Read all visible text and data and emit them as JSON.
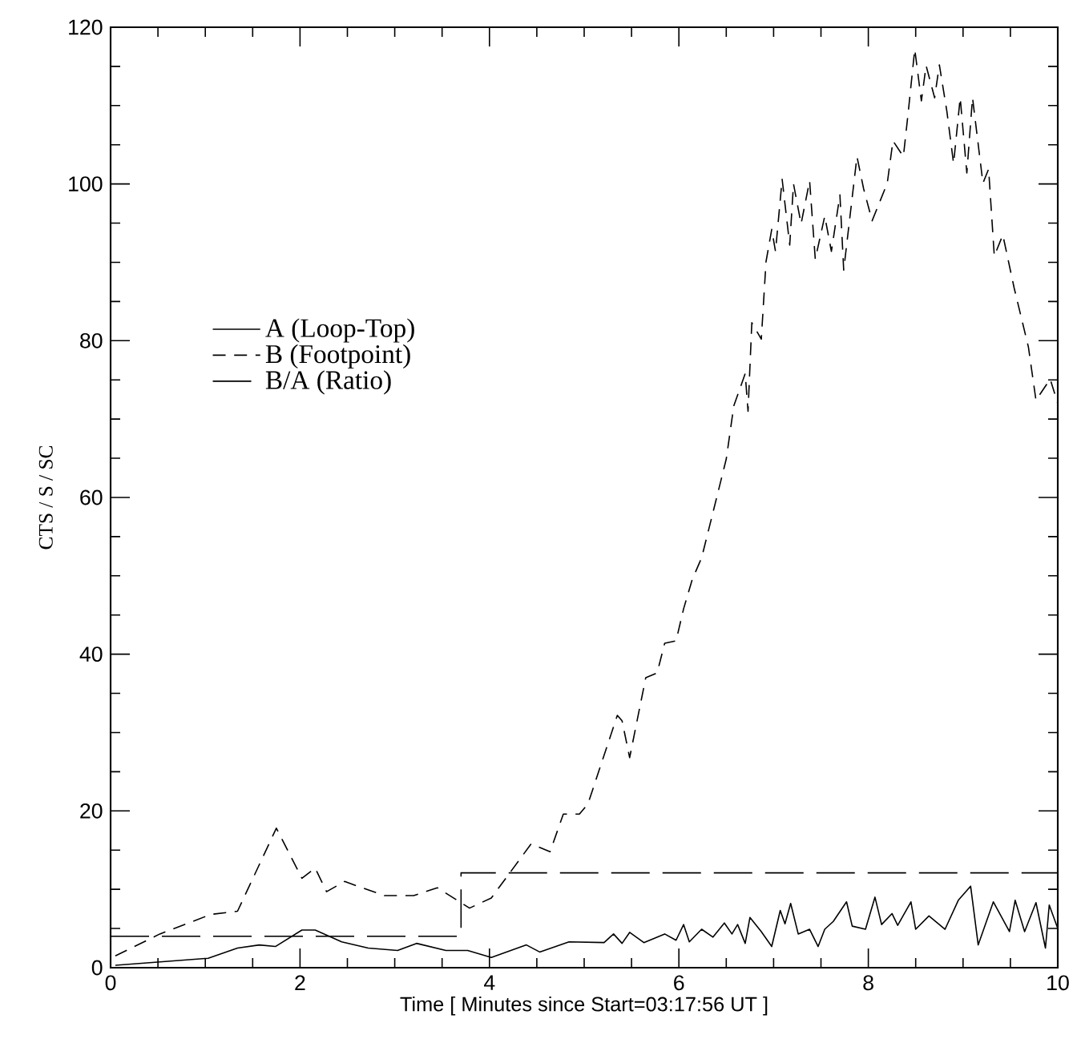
{
  "chart_data": {
    "type": "line",
    "xlabel": "Time [ Minutes since Start=03:17:56 UT ]",
    "ylabel": "CTS / S / SC",
    "xlim": [
      0,
      10
    ],
    "ylim": [
      0,
      120
    ],
    "xticks": [
      0,
      2,
      4,
      6,
      8,
      10
    ],
    "yticks": [
      0,
      20,
      40,
      60,
      80,
      100,
      120
    ],
    "legend": "center left",
    "grid": false,
    "series": [
      {
        "name": "A (Loop-Top)",
        "color": "#000000",
        "line_style": "solid",
        "x": [
          0.05,
          1.03,
          1.34,
          1.57,
          1.74,
          2.02,
          2.16,
          2.44,
          2.72,
          3.03,
          3.23,
          3.54,
          3.77,
          4.02,
          4.39,
          4.53,
          4.84,
          5.21,
          5.31,
          5.4,
          5.48,
          5.63,
          5.85,
          5.97,
          6.05,
          6.11,
          6.24,
          6.36,
          6.48,
          6.56,
          6.62,
          6.7,
          6.75,
          6.87,
          6.98,
          7.07,
          7.12,
          7.18,
          7.26,
          7.38,
          7.47,
          7.54,
          7.63,
          7.77,
          7.83,
          7.97,
          8.07,
          8.14,
          8.25,
          8.31,
          8.45,
          8.5,
          8.64,
          8.81,
          8.95,
          9.08,
          9.16,
          9.32,
          9.49,
          9.55,
          9.65,
          9.77,
          9.87,
          9.91,
          10.0
        ],
        "values": [
          0.3,
          1.2,
          2.5,
          2.9,
          2.7,
          4.8,
          4.8,
          3.3,
          2.5,
          2.2,
          3.1,
          2.2,
          2.2,
          1.3,
          2.9,
          2.0,
          3.3,
          3.2,
          4.3,
          3.1,
          4.5,
          3.2,
          4.3,
          3.5,
          5.5,
          3.3,
          4.9,
          3.9,
          5.7,
          4.3,
          5.5,
          3.1,
          6.4,
          4.6,
          2.7,
          7.3,
          5.6,
          8.2,
          4.3,
          4.9,
          2.7,
          4.9,
          5.9,
          8.4,
          5.3,
          4.9,
          9.0,
          5.5,
          6.9,
          5.4,
          8.4,
          4.9,
          6.6,
          4.9,
          8.6,
          10.4,
          2.9,
          8.4,
          4.6,
          8.6,
          4.6,
          8.3,
          2.5,
          8.0,
          5.0
        ]
      },
      {
        "name": "B (Footpoint)",
        "color": "#000000",
        "line_style": "dashed",
        "x": [
          0.05,
          0.52,
          1.06,
          1.34,
          1.75,
          2.02,
          2.16,
          2.28,
          2.47,
          2.89,
          3.2,
          3.45,
          3.79,
          4.02,
          4.44,
          4.64,
          4.78,
          4.95,
          5.04,
          5.35,
          5.4,
          5.48,
          5.65,
          5.77,
          5.85,
          5.97,
          6.05,
          6.14,
          6.24,
          6.36,
          6.5,
          6.58,
          6.7,
          6.73,
          6.77,
          6.87,
          6.92,
          6.98,
          7.02,
          7.09,
          7.17,
          7.21,
          7.29,
          7.38,
          7.44,
          7.54,
          7.61,
          7.7,
          7.74,
          7.88,
          7.95,
          8.04,
          8.2,
          8.26,
          8.37,
          8.42,
          8.49,
          8.56,
          8.61,
          8.7,
          8.75,
          8.83,
          8.9,
          8.97,
          9.04,
          9.1,
          9.21,
          9.27,
          9.33,
          9.42,
          9.54,
          9.69,
          9.77,
          9.92,
          10.0
        ],
        "values": [
          1.5,
          4.3,
          6.8,
          7.2,
          17.8,
          11.4,
          12.7,
          9.7,
          11.0,
          9.2,
          9.2,
          10.2,
          7.6,
          8.9,
          15.8,
          14.8,
          19.6,
          19.6,
          20.9,
          32.2,
          31.5,
          26.8,
          37.0,
          37.6,
          41.4,
          41.7,
          45.8,
          49.5,
          52.3,
          58.1,
          64.9,
          71.7,
          75.8,
          71.0,
          82.3,
          80.2,
          90.1,
          94.2,
          91.4,
          100.6,
          92.2,
          100.0,
          94.9,
          100.4,
          90.4,
          95.9,
          91.4,
          98.6,
          89.0,
          103.5,
          99.4,
          95.3,
          100.1,
          105.5,
          103.5,
          109.0,
          117.2,
          110.6,
          115.1,
          111.0,
          115.2,
          109.2,
          102.6,
          111.0,
          101.4,
          111.0,
          100.1,
          101.9,
          90.8,
          93.5,
          86.7,
          79.2,
          72.4,
          75.1,
          72.0
        ]
      },
      {
        "name": "B/A (Ratio)",
        "color": "#000000",
        "line_style": "longdash",
        "x": [
          0,
          3.7,
          3.7,
          10
        ],
        "values": [
          4.0,
          4.0,
          12.1,
          12.1
        ]
      }
    ]
  }
}
